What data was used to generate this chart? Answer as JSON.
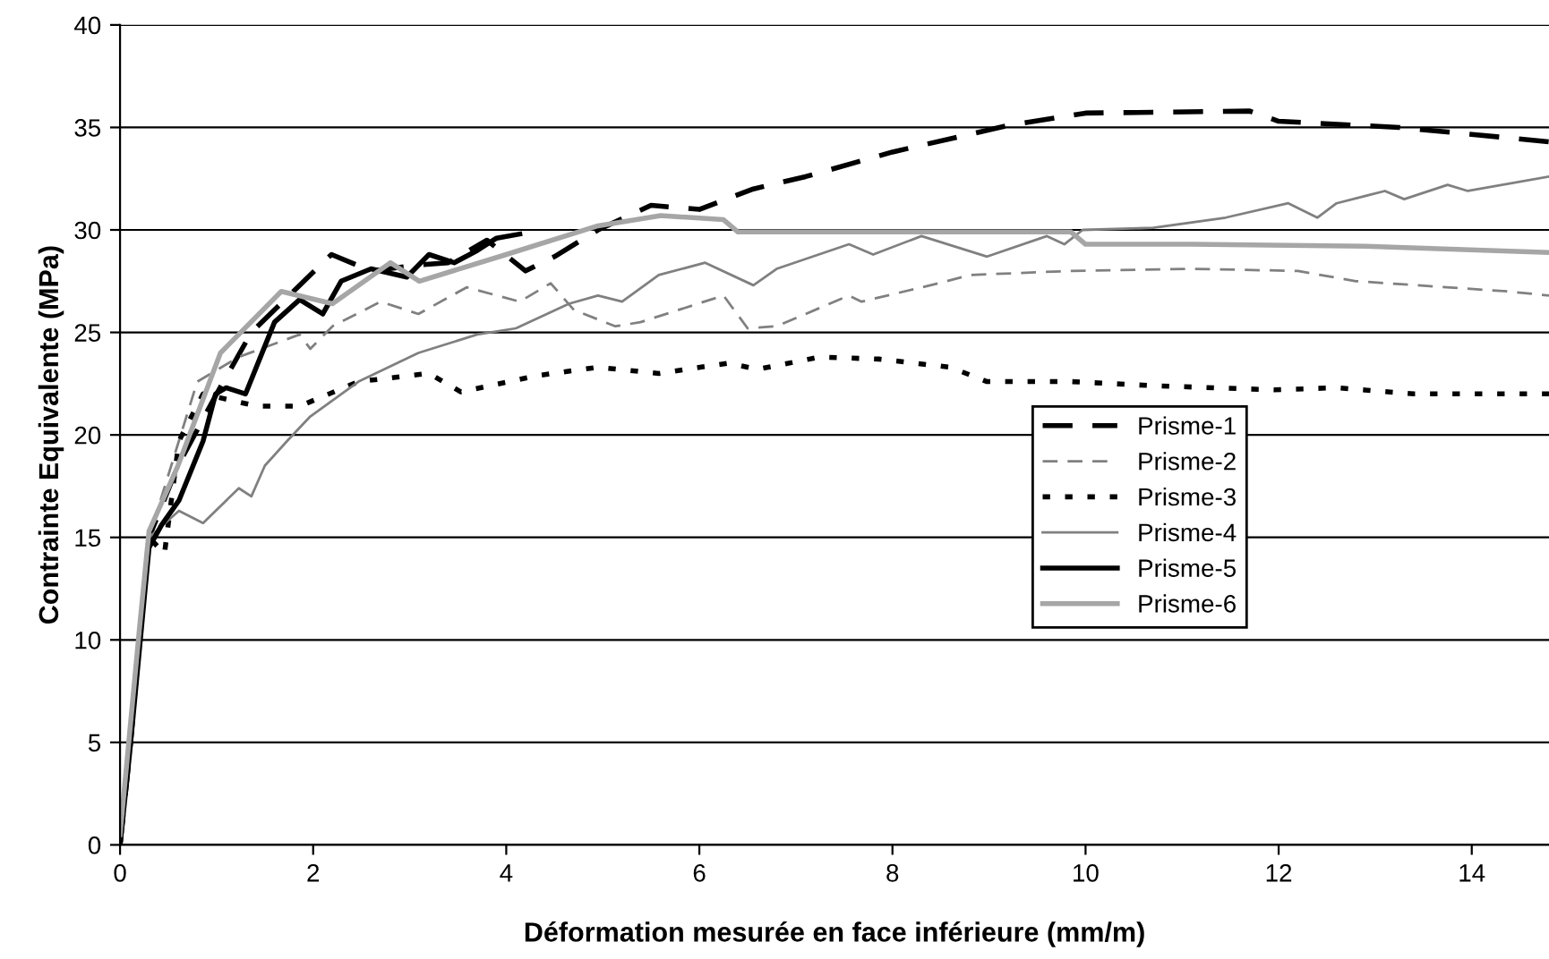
{
  "chart_data": {
    "type": "line",
    "xlabel": "Déformation mesurée en face inférieure (mm/m)",
    "ylabel": "Contrainte Equivalente (MPa)",
    "xlim": [
      0,
      14.8
    ],
    "xticks": [
      0,
      2,
      4,
      6,
      8,
      10,
      12,
      14
    ],
    "ylim": [
      0,
      40
    ],
    "yticks": [
      0,
      5,
      10,
      15,
      20,
      25,
      30,
      35,
      40
    ],
    "grid": "y",
    "legend": "right",
    "marker": "none",
    "series": [
      {
        "name": "Prisme-1",
        "color": "#000000",
        "line_style": "dashed",
        "x": [
          0,
          0.1,
          0.2,
          0.3,
          0.6,
          1.0,
          1.36,
          2.1,
          2.19,
          2.6,
          3.1,
          3.4,
          3.8,
          4.2,
          4.5,
          4.95,
          5.5,
          6.0,
          6.56,
          7.1,
          8.0,
          9.2,
          10.0,
          11.7,
          12.0,
          13.25,
          14.8
        ],
        "values": [
          0,
          4.5,
          10,
          15,
          18.5,
          22,
          25,
          28.4,
          28.8,
          28,
          28.3,
          28.4,
          29.5,
          28,
          28.7,
          30,
          31.2,
          31,
          32,
          32.6,
          33.8,
          35.1,
          35.7,
          35.8,
          35.3,
          35,
          34.3
        ]
      },
      {
        "name": "Prisme-2",
        "color": "#808080",
        "line_style": "dashed",
        "x": [
          0,
          0.1,
          0.2,
          0.3,
          0.8,
          1.23,
          1.86,
          1.97,
          2.2,
          2.7,
          3.09,
          3.59,
          4.14,
          4.46,
          4.7,
          5.13,
          5.39,
          6.25,
          6.5,
          6.8,
          7.55,
          7.68,
          8.48,
          8.8,
          9.85,
          11.1,
          12.2,
          12.8,
          14.37,
          14.8
        ],
        "values": [
          0,
          5,
          10,
          15,
          22.6,
          23.8,
          24.9,
          24.2,
          25.3,
          26.5,
          25.9,
          27.2,
          26.5,
          27.4,
          26.1,
          25.3,
          25.5,
          26.8,
          25.2,
          25.3,
          26.8,
          26.5,
          27.4,
          27.8,
          28,
          28.1,
          28,
          27.5,
          27,
          26.8
        ]
      },
      {
        "name": "Prisme-3",
        "color": "#000000",
        "line_style": "dotted",
        "x": [
          0,
          0.1,
          0.2,
          0.3,
          0.46,
          0.61,
          0.86,
          1.42,
          1.86,
          2.47,
          3.2,
          3.53,
          4.33,
          4.95,
          5.58,
          6.3,
          6.6,
          7.25,
          7.86,
          8.6,
          8.98,
          9.85,
          10.7,
          11.95,
          12.6,
          13.4,
          14.8
        ],
        "values": [
          0,
          5,
          10,
          15,
          14.2,
          19.7,
          22,
          21.4,
          21.4,
          22.6,
          23,
          22.1,
          22.9,
          23.3,
          23,
          23.5,
          23.2,
          23.8,
          23.7,
          23.3,
          22.6,
          22.6,
          22.4,
          22.2,
          22.3,
          22,
          22
        ]
      },
      {
        "name": "Prisme-4",
        "color": "#808080",
        "line_style": "solid",
        "x": [
          0,
          0.1,
          0.2,
          0.3,
          0.61,
          0.86,
          1.23,
          1.36,
          1.5,
          1.73,
          1.97,
          2.47,
          3.09,
          3.7,
          4.1,
          4.65,
          4.95,
          5.2,
          5.58,
          6.06,
          6.56,
          6.8,
          7.55,
          7.8,
          8.3,
          8.98,
          9.6,
          9.78,
          9.97,
          10.7,
          11.45,
          12.1,
          12.4,
          12.6,
          13.1,
          13.3,
          13.75,
          13.96,
          14.8
        ],
        "values": [
          0,
          5,
          10,
          15,
          16.3,
          15.7,
          17.4,
          17,
          18.5,
          19.7,
          20.9,
          22.6,
          24,
          24.9,
          25.2,
          26.4,
          26.8,
          26.5,
          27.8,
          28.4,
          27.3,
          28.1,
          29.3,
          28.8,
          29.7,
          28.7,
          29.7,
          29.3,
          30,
          30.1,
          30.6,
          31.3,
          30.6,
          31.3,
          31.9,
          31.5,
          32.2,
          31.9,
          32.6
        ]
      },
      {
        "name": "Prisme-5",
        "color": "#000000",
        "line_style": "solid",
        "x": [
          0,
          0.1,
          0.2,
          0.3,
          0.43,
          0.61,
          0.86,
          0.99,
          1.1,
          1.3,
          1.6,
          1.86,
          2.1,
          2.29,
          2.6,
          2.97,
          3.2,
          3.46,
          3.7,
          3.9,
          4.14
        ],
        "values": [
          0,
          4.5,
          9.5,
          14.5,
          15.6,
          16.8,
          19.7,
          22,
          22.3,
          22,
          25.5,
          26.6,
          25.9,
          27.5,
          28.1,
          27.7,
          28.8,
          28.4,
          29,
          29.6,
          29.8
        ]
      },
      {
        "name": "Prisme-6",
        "color": "#a6a6a6",
        "line_style": "solid",
        "x": [
          0,
          0.1,
          0.2,
          0.3,
          0.6,
          1.04,
          1.67,
          2.2,
          2.8,
          3.1,
          4.0,
          4.95,
          5.6,
          6.25,
          6.4,
          9.85,
          10.0,
          11.1,
          12.9,
          14.8
        ],
        "values": [
          0.5,
          5.5,
          10.5,
          15.3,
          18.5,
          24,
          27,
          26.4,
          28.4,
          27.5,
          28.8,
          30.2,
          30.7,
          30.5,
          29.9,
          29.9,
          29.3,
          29.3,
          29.2,
          28.9
        ]
      }
    ]
  }
}
